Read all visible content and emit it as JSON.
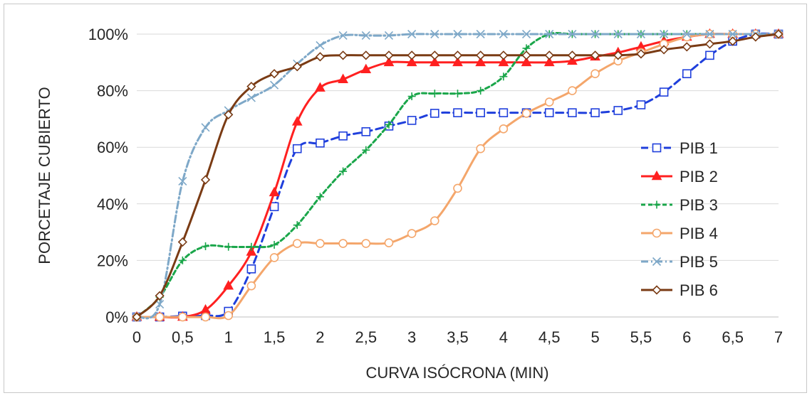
{
  "chart_data": {
    "type": "line",
    "title": "",
    "xlabel": "CURVA ISÓCRONA (MIN)",
    "ylabel": "PORCETAJE CUBIERTO",
    "x": [
      0,
      0.25,
      0.5,
      0.75,
      1,
      1.25,
      1.5,
      1.75,
      2,
      2.25,
      2.5,
      2.75,
      3,
      3.25,
      3.5,
      3.75,
      4,
      4.25,
      4.5,
      4.75,
      5,
      5.25,
      5.5,
      5.75,
      6,
      6.25,
      6.5,
      6.75,
      7
    ],
    "x_ticks": [
      "0",
      "0,5",
      "1",
      "1,5",
      "2",
      "2,5",
      "3",
      "3,5",
      "4",
      "4,5",
      "5",
      "5,5",
      "6",
      "6,5",
      "7"
    ],
    "x_tick_values": [
      0,
      0.5,
      1,
      1.5,
      2,
      2.5,
      3,
      3.5,
      4,
      4.5,
      5,
      5.5,
      6,
      6.5,
      7
    ],
    "y_ticks": [
      "0%",
      "20%",
      "40%",
      "60%",
      "80%",
      "100%"
    ],
    "y_tick_values": [
      0,
      20,
      40,
      60,
      80,
      100
    ],
    "xlim": [
      0,
      7
    ],
    "ylim": [
      0,
      100
    ],
    "grid": "horizontal",
    "legend_position": "right",
    "series": [
      {
        "name": "PIB 1",
        "color": "#1f3fdc",
        "dash": "10,6",
        "marker": "square",
        "values": [
          0,
          0,
          0.3,
          0.5,
          2,
          17,
          39,
          59.5,
          61.5,
          64,
          65.5,
          67.5,
          69.5,
          72,
          72.2,
          72.2,
          72.2,
          72.2,
          72.2,
          72.2,
          72.2,
          73,
          75,
          79.5,
          86,
          92.5,
          97.5,
          100,
          100
        ]
      },
      {
        "name": "PIB 2",
        "color": "#ff2020",
        "dash": "",
        "marker": "triangle",
        "values": [
          0,
          0,
          0,
          2.5,
          11,
          23,
          44,
          69,
          81,
          84,
          87.5,
          90,
          90,
          90,
          90,
          90,
          90,
          90,
          90,
          90.5,
          92,
          93.5,
          95.5,
          97.5,
          99,
          100,
          100,
          100,
          100
        ]
      },
      {
        "name": "PIB 3",
        "color": "#1aa64a",
        "dash": "6,4",
        "marker": "plus",
        "values": [
          0,
          7,
          20,
          25,
          24.8,
          24.8,
          25.5,
          32.5,
          42.5,
          51.5,
          59,
          68,
          78,
          79,
          79,
          80,
          85,
          95,
          100,
          100,
          100,
          100,
          100,
          100,
          100,
          100,
          100,
          100,
          100
        ]
      },
      {
        "name": "PIB 4",
        "color": "#f4a66b",
        "dash": "",
        "marker": "circle",
        "values": [
          0,
          0,
          0,
          0,
          0.5,
          11,
          21,
          26,
          26,
          26,
          26,
          26.2,
          29.5,
          34,
          45.5,
          59.5,
          66.5,
          72,
          76,
          80,
          86,
          90.5,
          93.5,
          96.5,
          99,
          100,
          100,
          100,
          100
        ]
      },
      {
        "name": "PIB 5",
        "color": "#7ea8c8",
        "dash": "10,4,2,4",
        "marker": "x",
        "values": [
          0,
          4.5,
          48,
          67,
          73,
          77.5,
          82,
          89.5,
          96,
          99.5,
          99.5,
          99.5,
          100,
          100,
          100,
          100,
          100,
          100,
          100,
          100,
          100,
          100,
          100,
          100,
          100,
          100,
          100,
          100,
          100
        ]
      },
      {
        "name": "PIB 6",
        "color": "#7a3b14",
        "dash": "",
        "marker": "diamond",
        "values": [
          0,
          7.5,
          26.5,
          48.5,
          71.5,
          81.5,
          86,
          88.5,
          92,
          92.5,
          92.5,
          92.5,
          92.5,
          92.5,
          92.5,
          92.5,
          92.5,
          92.5,
          92.5,
          92.5,
          92.5,
          92.5,
          93,
          94.5,
          95.5,
          96.5,
          97.5,
          99,
          100
        ]
      }
    ]
  }
}
